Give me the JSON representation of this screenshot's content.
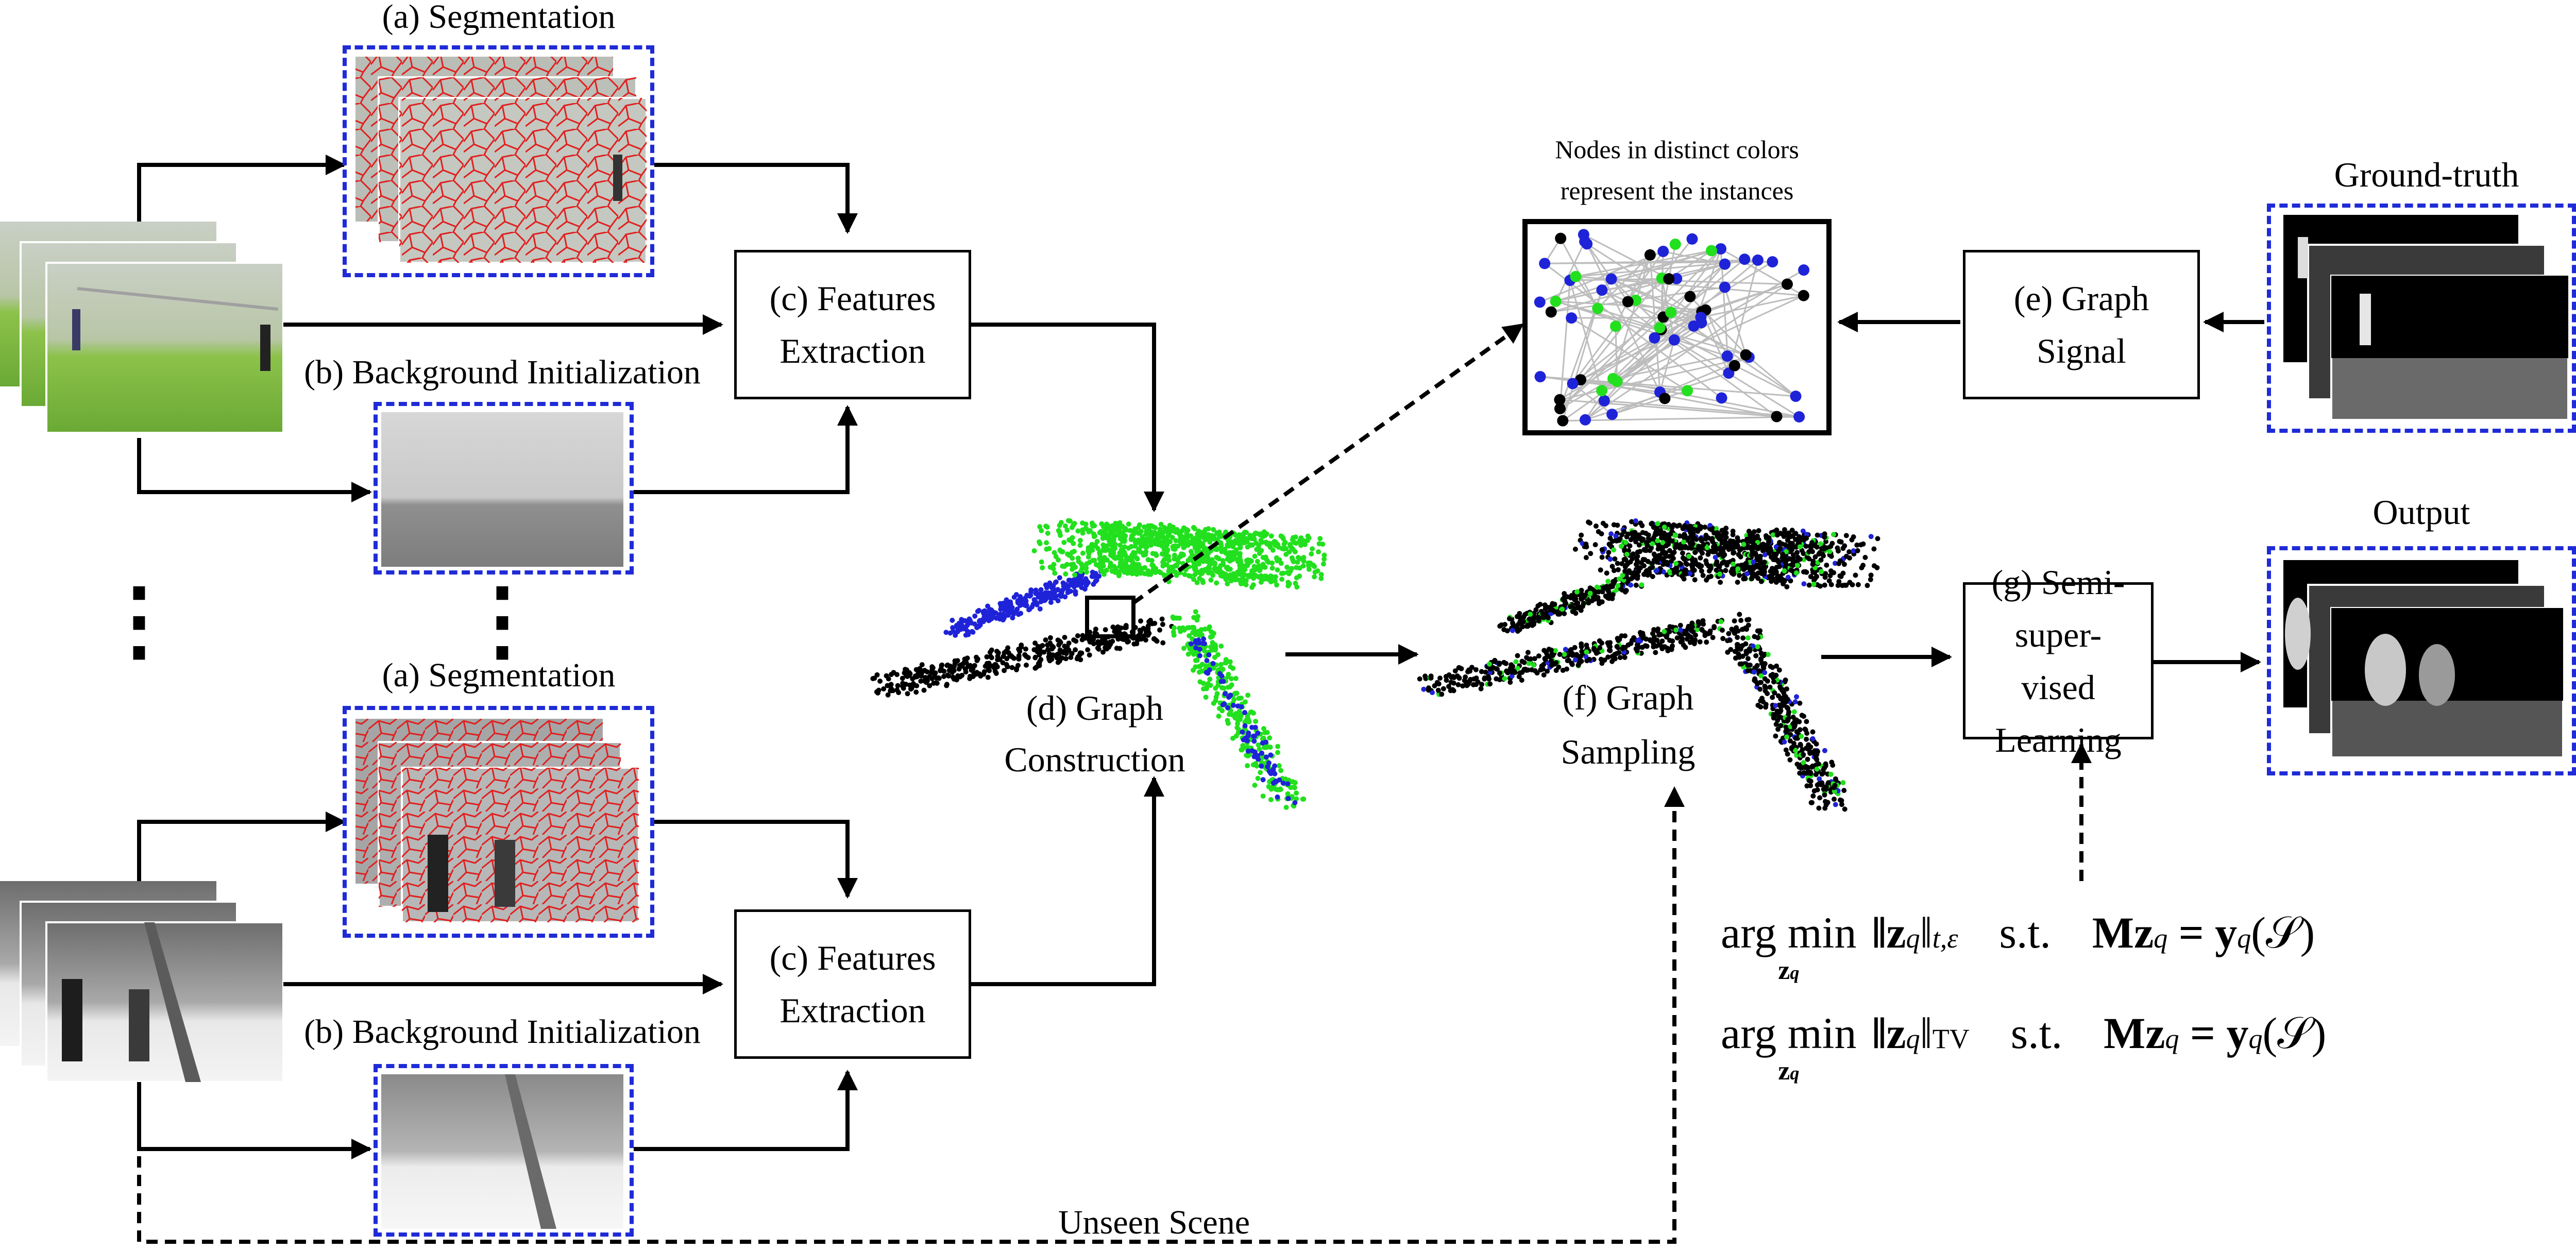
{
  "labels": {
    "segmentation_top": "(a) Segmentation",
    "segmentation_bottom": "(a) Segmentation",
    "background_top": "(b) Background Initialization",
    "background_bottom": "(b) Background Initialization",
    "features_top": [
      "(c) Features",
      "Extraction"
    ],
    "features_bottom": [
      "(c) Features",
      "Extraction"
    ],
    "graph_construction": [
      "(d) Graph",
      "Construction"
    ],
    "graph_sampling": [
      "(f) Graph",
      "Sampling"
    ],
    "graph_signal": [
      "(e) Graph",
      "Signal"
    ],
    "semi_supervised": [
      "(g) Semi-super-",
      "vised Learning"
    ],
    "nodes_caption": [
      "Nodes in distinct colors",
      "represent the instances"
    ],
    "ground_truth": "Ground-truth",
    "output": "Output",
    "unseen_scene": "Unseen Scene",
    "vertical_dots": "⋮"
  },
  "equations": {
    "eq1": {
      "argmin": "arg min",
      "sub": "z",
      "subq": "q",
      "norm": "‖z",
      "norm_q": "q",
      "norm_tail": "‖",
      "norm_sub": "t,ε",
      "st": "s.t.",
      "rhs": "Mz",
      "rhs_q": "q",
      "equals": " = y",
      "y_q": "q",
      "set": "(𝒮)"
    },
    "eq2": {
      "argmin": "arg min",
      "sub": "z",
      "subq": "q",
      "norm": "‖z",
      "norm_q": "q",
      "norm_tail": "‖",
      "norm_sub": "TV",
      "st": "s.t.",
      "rhs": "Mz",
      "rhs_q": "q",
      "equals": " = y",
      "y_q": "q",
      "set": "(𝒮)"
    }
  },
  "colors": {
    "dashed_border": "#1f2bd6",
    "node_green": "#22e01e",
    "node_blue": "#1f23d8",
    "node_black": "#000000",
    "edge_gray": "#bdbdbd",
    "seg_red": "#e02020"
  }
}
